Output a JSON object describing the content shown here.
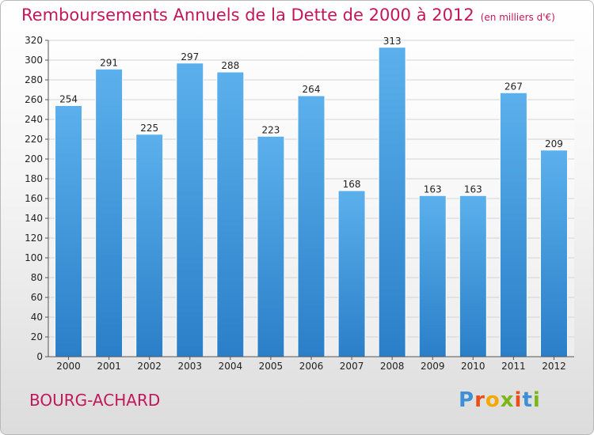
{
  "title": "Remboursements Annuels de la Dette de 2000 à 2012",
  "subtitle": "(en milliers d'€)",
  "city": "BOURG-ACHARD",
  "logo": {
    "letters": [
      "P",
      "r",
      "o",
      "x",
      "i",
      "t",
      "i"
    ],
    "colors": [
      "#3f8fd6",
      "#e94e1b",
      "#f5a800",
      "#7cb518",
      "#e94e1b",
      "#3f8fd6",
      "#7cb518"
    ]
  },
  "colors": {
    "bar": "#3d93d8",
    "bar_light": "#5bb0ec",
    "title": "#c2185b"
  },
  "chart_data": {
    "type": "bar",
    "categories": [
      "2000",
      "2001",
      "2002",
      "2003",
      "2004",
      "2005",
      "2006",
      "2007",
      "2008",
      "2009",
      "2010",
      "2011",
      "2012"
    ],
    "values": [
      254,
      291,
      225,
      297,
      288,
      223,
      264,
      168,
      313,
      163,
      163,
      267,
      209
    ],
    "ylim": [
      0,
      320
    ],
    "yticks": [
      0,
      20,
      40,
      60,
      80,
      100,
      120,
      140,
      160,
      180,
      200,
      220,
      240,
      260,
      280,
      300,
      320
    ],
    "grid": true
  }
}
